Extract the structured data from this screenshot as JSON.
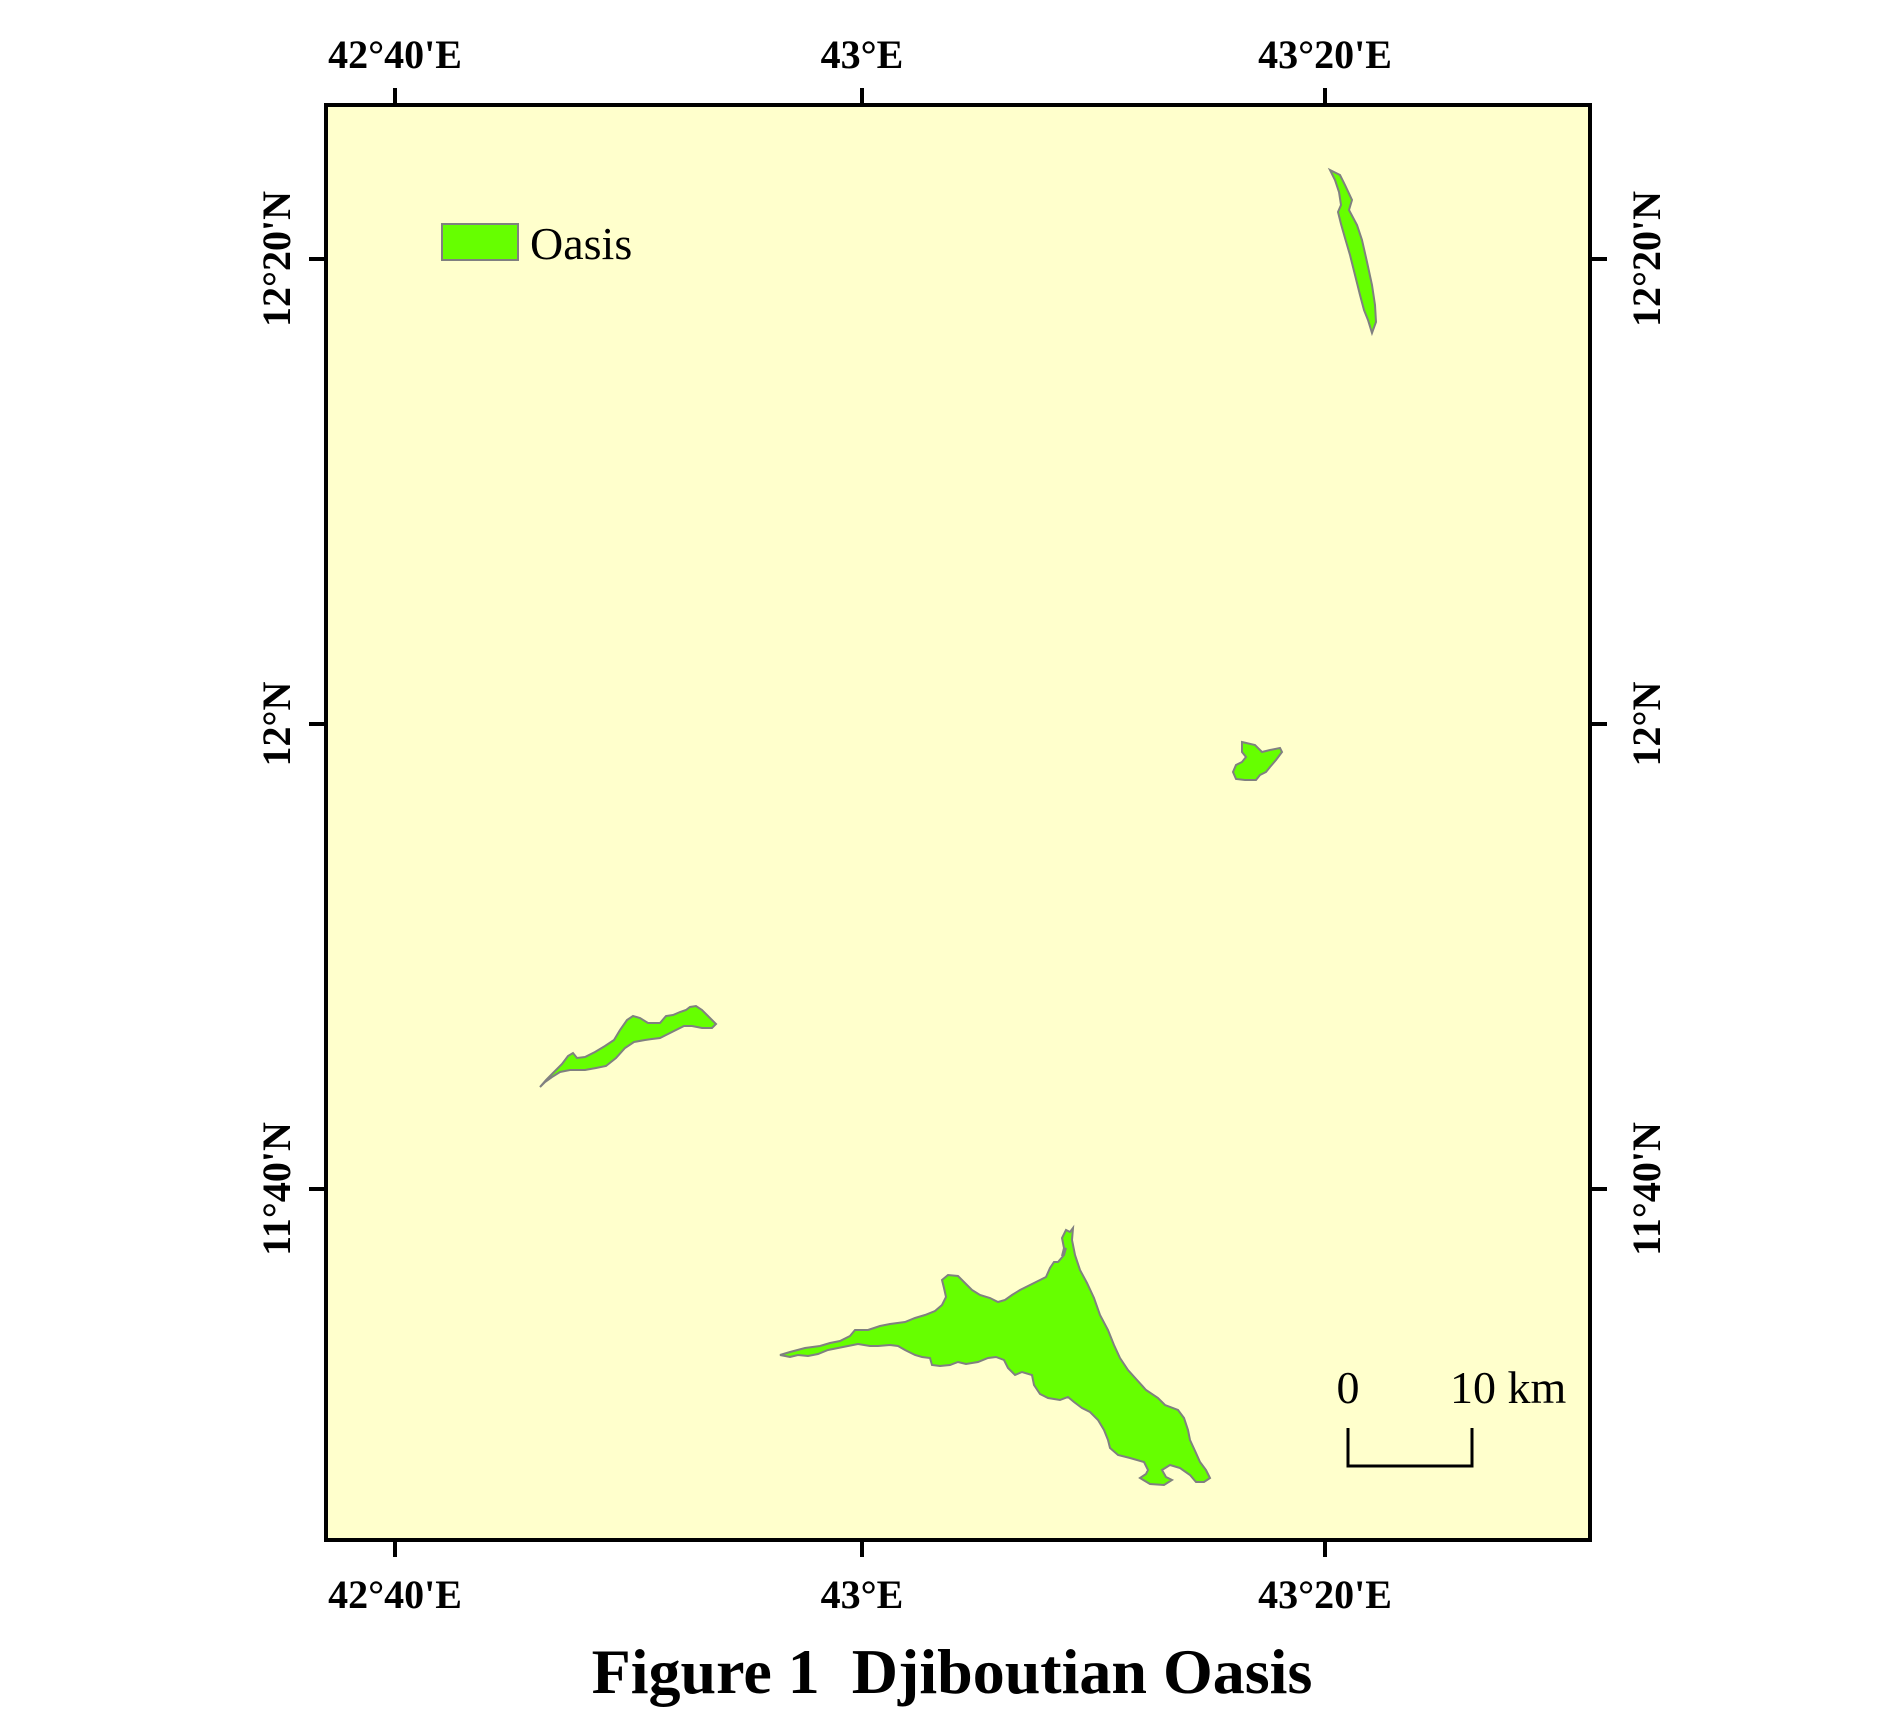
{
  "map": {
    "background_color": "#ffffcc",
    "oasis_color": "#66ff00",
    "outline_color": "#808080",
    "top_labels": [
      "42°40'E",
      "43°E",
      "43°20'E"
    ],
    "bottom_labels": [
      "42°40'E",
      "43°E",
      "43°20'E"
    ],
    "left_labels": [
      "12°20'N",
      "12°N",
      "11°40'N"
    ],
    "right_labels": [
      "12°20'N",
      "12°N",
      "11°40'N"
    ]
  },
  "legend": {
    "label": "Oasis"
  },
  "scale_bar": {
    "start_label": "0",
    "end_label": "10 km"
  },
  "caption": "Figure 1  Djiboutian Oasis"
}
